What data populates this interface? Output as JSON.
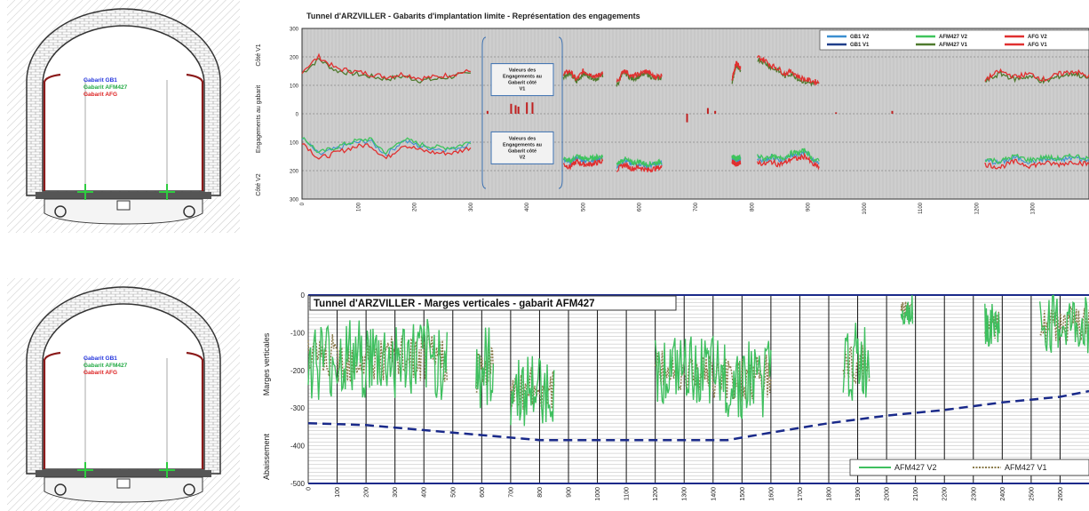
{
  "tunnel_diagrams": [
    {
      "legend": [
        "Gabarit GB1",
        "Gabarit AFM427",
        "Gabarit AFG"
      ],
      "legend_colors": [
        "#2233dd",
        "#22aa44",
        "#dd2222"
      ]
    },
    {
      "legend": [
        "Gabarit GB1",
        "Gabarit AFM427",
        "Gabarit AFG"
      ],
      "legend_colors": [
        "#2233dd",
        "#22aa44",
        "#dd2222"
      ]
    }
  ],
  "chart_data": [
    {
      "type": "line",
      "title": "Tunnel d'ARZVILLER - Gabarits d'implantation limite - Représentation des engagements",
      "ylabel": "Engagements au gabarit",
      "ylabel_side_top": "Côté V1",
      "ylabel_side_bottom": "Côté V2",
      "ylim": [
        -300,
        300
      ],
      "yticks": [
        "300",
        "200",
        "100",
        "0",
        "100",
        "200",
        "300"
      ],
      "xlim": [
        0,
        1400
      ],
      "xticks": [
        0,
        100,
        200,
        300,
        400,
        500,
        600,
        700,
        800,
        900,
        1000,
        1100,
        1200,
        1300
      ],
      "legend": [
        {
          "name": "GB1 V2",
          "color": "#3b8fd0"
        },
        {
          "name": "AFM427 V2",
          "color": "#3fc45c"
        },
        {
          "name": "AFG V2",
          "color": "#e03030"
        },
        {
          "name": "GB1 V1",
          "color": "#1f3e8a"
        },
        {
          "name": "AFM427 V1",
          "color": "#4f7a2e"
        },
        {
          "name": "AFG V1",
          "color": "#e03030"
        }
      ],
      "annotations": [
        "Valeurs des Engagements au Gabarit côté V1",
        "Valeurs des Engagements au Gabarit côté V2"
      ],
      "segments": [
        {
          "x": [
            0,
            300
          ],
          "v1": [
            150,
            200,
            160,
            150,
            140,
            130,
            140,
            125,
            130,
            140,
            150
          ],
          "v2": [
            -90,
            -150,
            -130,
            -110,
            -100,
            -150,
            -100,
            -120,
            -130,
            -130,
            -110
          ]
        },
        {
          "x": [
            465,
            535
          ],
          "v1": [
            140,
            150,
            120,
            150,
            140,
            130,
            145
          ],
          "v2": [
            -170,
            -180,
            -160,
            -170,
            -170,
            -165,
            -160
          ]
        },
        {
          "x": [
            560,
            640
          ],
          "v1": [
            110,
            155,
            130,
            140,
            150,
            130,
            135
          ],
          "v2": [
            -190,
            -170,
            -185,
            -180,
            -190,
            -185,
            -180
          ]
        },
        {
          "x": [
            765,
            780
          ],
          "v1": [
            120,
            180,
            160
          ],
          "v2": [
            -160,
            -170,
            -165
          ]
        },
        {
          "x": [
            810,
            920
          ],
          "v1": [
            200,
            190,
            170,
            160,
            140,
            150,
            130,
            120,
            115,
            110
          ],
          "v2": [
            -160,
            -170,
            -160,
            -170,
            -165,
            -150,
            -150,
            -140,
            -170,
            -180
          ]
        },
        {
          "x": [
            1215,
            1400
          ],
          "v1": [
            120,
            150,
            130,
            140,
            120,
            140,
            150,
            130
          ],
          "v2": [
            -170,
            -180,
            -160,
            -175,
            -165,
            -170,
            -160,
            -170
          ]
        }
      ]
    },
    {
      "type": "line",
      "title": "Tunnel d'ARZVILLER - Marges verticales - gabarit AFM427",
      "ylabel": "Marges verticales",
      "ylabel2": "Abaissement",
      "ylim": [
        -500,
        0
      ],
      "yticks": [
        0,
        -100,
        -200,
        -300,
        -400,
        -500
      ],
      "xlim": [
        0,
        2700
      ],
      "xticks": [
        0,
        100,
        200,
        300,
        400,
        500,
        600,
        700,
        800,
        900,
        1000,
        1100,
        1200,
        1300,
        1400,
        1500,
        1600,
        1700,
        1800,
        1900,
        2000,
        2100,
        2200,
        2300,
        2400,
        2500,
        2600
      ],
      "series": [
        {
          "name": "AFM427 V2",
          "color": "#3fbf5f"
        },
        {
          "name": "AFM427 V1",
          "color": "#8a7a4a"
        }
      ],
      "profile": {
        "color": "#1a2a8a",
        "x": [
          0,
          200,
          500,
          800,
          1000,
          1200,
          1450,
          1600,
          1800,
          2000,
          2200,
          2400,
          2600,
          2700
        ],
        "y": [
          -340,
          -345,
          -365,
          -385,
          -385,
          -385,
          -385,
          -365,
          -340,
          -320,
          -305,
          -285,
          -270,
          -255
        ]
      },
      "segments": [
        {
          "x": [
            0,
            480
          ],
          "center": -170,
          "amp": 110
        },
        {
          "x": [
            580,
            640
          ],
          "center": -200,
          "amp": 120
        },
        {
          "x": [
            700,
            850
          ],
          "center": -250,
          "amp": 100
        },
        {
          "x": [
            1200,
            1380
          ],
          "center": -200,
          "amp": 90
        },
        {
          "x": [
            1380,
            1600
          ],
          "center": -220,
          "amp": 110
        },
        {
          "x": [
            1850,
            1940
          ],
          "center": -180,
          "amp": 110
        },
        {
          "x": [
            2050,
            2090
          ],
          "center": -40,
          "amp": 40
        },
        {
          "x": [
            2340,
            2390
          ],
          "center": -80,
          "amp": 60
        },
        {
          "x": [
            2530,
            2700
          ],
          "center": -80,
          "amp": 80
        }
      ]
    }
  ]
}
